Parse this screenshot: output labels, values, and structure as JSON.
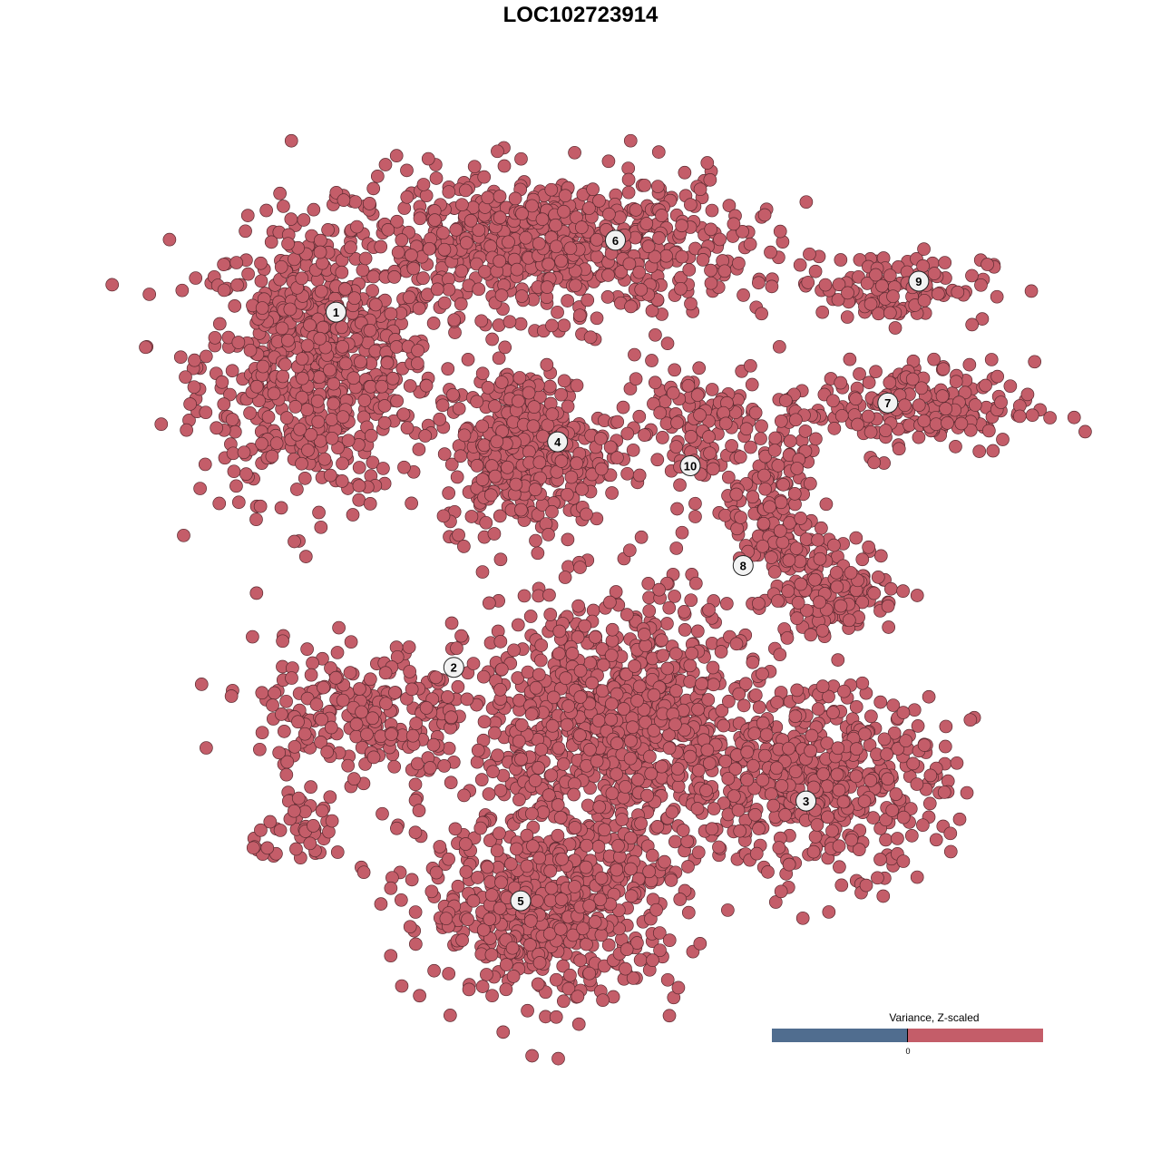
{
  "chart_data": {
    "type": "scatter",
    "title": "LOC102723914",
    "xlabel": "",
    "ylabel": "",
    "grid": false,
    "axes_visible": false,
    "xlim": [
      -40,
      45
    ],
    "ylim": [
      -42,
      42
    ],
    "point_color": "#c45d69",
    "point_outline": "#5a2a30",
    "cluster_labels": [
      {
        "label": "1",
        "x": -24.5,
        "y": 26.9
      },
      {
        "label": "6",
        "x": 3.5,
        "y": 34.1
      },
      {
        "label": "9",
        "x": 33.9,
        "y": 30.0
      },
      {
        "label": "7",
        "x": 30.8,
        "y": 17.8
      },
      {
        "label": "4",
        "x": -2.3,
        "y": 13.9
      },
      {
        "label": "10",
        "x": 11.0,
        "y": 11.5
      },
      {
        "label": "8",
        "x": 16.3,
        "y": 1.5
      },
      {
        "label": "2",
        "x": -12.7,
        "y": -8.7
      },
      {
        "label": "3",
        "x": 22.6,
        "y": -22.1
      },
      {
        "label": "5",
        "x": -6.0,
        "y": -32.1
      }
    ],
    "point_groups": [
      {
        "cluster": "1",
        "x": -26.4,
        "y": 21.8,
        "sx": 5.9,
        "sy": 6.8,
        "n": 700
      },
      {
        "cluster": "6",
        "x": -3.6,
        "y": 33.6,
        "sx": 10.0,
        "sy": 3.6,
        "n": 700
      },
      {
        "cluster": "9",
        "x": 30.9,
        "y": 29.5,
        "sx": 5.0,
        "sy": 1.8,
        "n": 120
      },
      {
        "cluster": "7",
        "x": 32.7,
        "y": 17.3,
        "sx": 6.4,
        "sy": 2.3,
        "n": 200
      },
      {
        "cluster": "4",
        "x": -5.5,
        "y": 13.2,
        "sx": 4.1,
        "sy": 4.1,
        "n": 400
      },
      {
        "cluster": "10",
        "x": 10.9,
        "y": 15.5,
        "sx": 3.6,
        "sy": 3.6,
        "n": 120
      },
      {
        "cluster": "8",
        "x": 19.1,
        "y": 7.3,
        "sx": 2.3,
        "sy": 4.5,
        "n": 150
      },
      {
        "cluster": "8",
        "x": 25.5,
        "y": -0.9,
        "sx": 3.2,
        "sy": 2.3,
        "n": 150
      },
      {
        "cluster": "2",
        "x": -21.8,
        "y": -13.6,
        "sx": 5.5,
        "sy": 3.6,
        "n": 250
      },
      {
        "cluster": "2",
        "x": -27.3,
        "y": -25.5,
        "sx": 2.7,
        "sy": 1.4,
        "n": 40
      },
      {
        "cluster": "center",
        "x": 3.6,
        "y": -14.5,
        "sx": 7.3,
        "sy": 6.4,
        "n": 900
      },
      {
        "cluster": "3",
        "x": 23.6,
        "y": -20.0,
        "sx": 6.4,
        "sy": 4.5,
        "n": 500
      },
      {
        "cluster": "5",
        "x": -2.7,
        "y": -32.7,
        "sx": 6.4,
        "sy": 4.5,
        "n": 600
      }
    ],
    "legend": {
      "title": "Variance, Z-scaled",
      "tick_label": "0",
      "low_color": "#506d8f",
      "high_color": "#c45d69",
      "placement": "bottom-right"
    }
  }
}
